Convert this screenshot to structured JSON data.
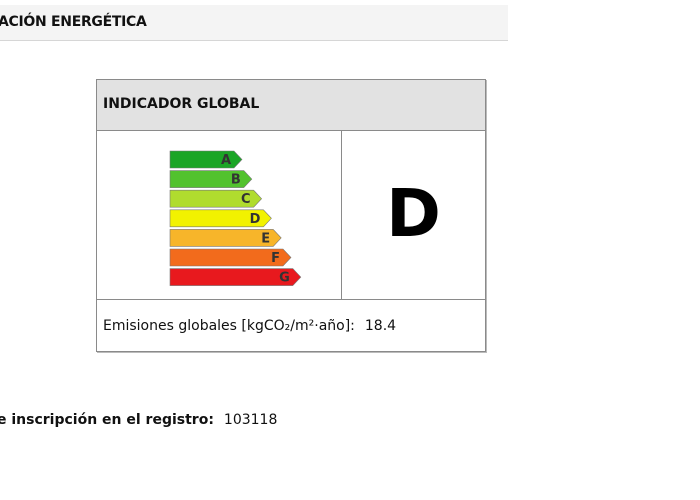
{
  "header": {
    "title": "ACIÓN ENERGÉTICA"
  },
  "indicator": {
    "title": "INDICADOR GLOBAL",
    "scale": {
      "labels": [
        "A",
        "B",
        "C",
        "D",
        "E",
        "F",
        "G"
      ],
      "colors": [
        "#1ba526",
        "#52c22e",
        "#b0dc2e",
        "#f2f200",
        "#f7b52a",
        "#f26b1c",
        "#e8191e"
      ]
    },
    "rating": "D",
    "emissions_label": "Emisiones globales [kgCO₂/m²·año]:",
    "emissions_value": "18.4"
  },
  "registration": {
    "label": "e inscripción en el registro:",
    "value": "103118"
  }
}
